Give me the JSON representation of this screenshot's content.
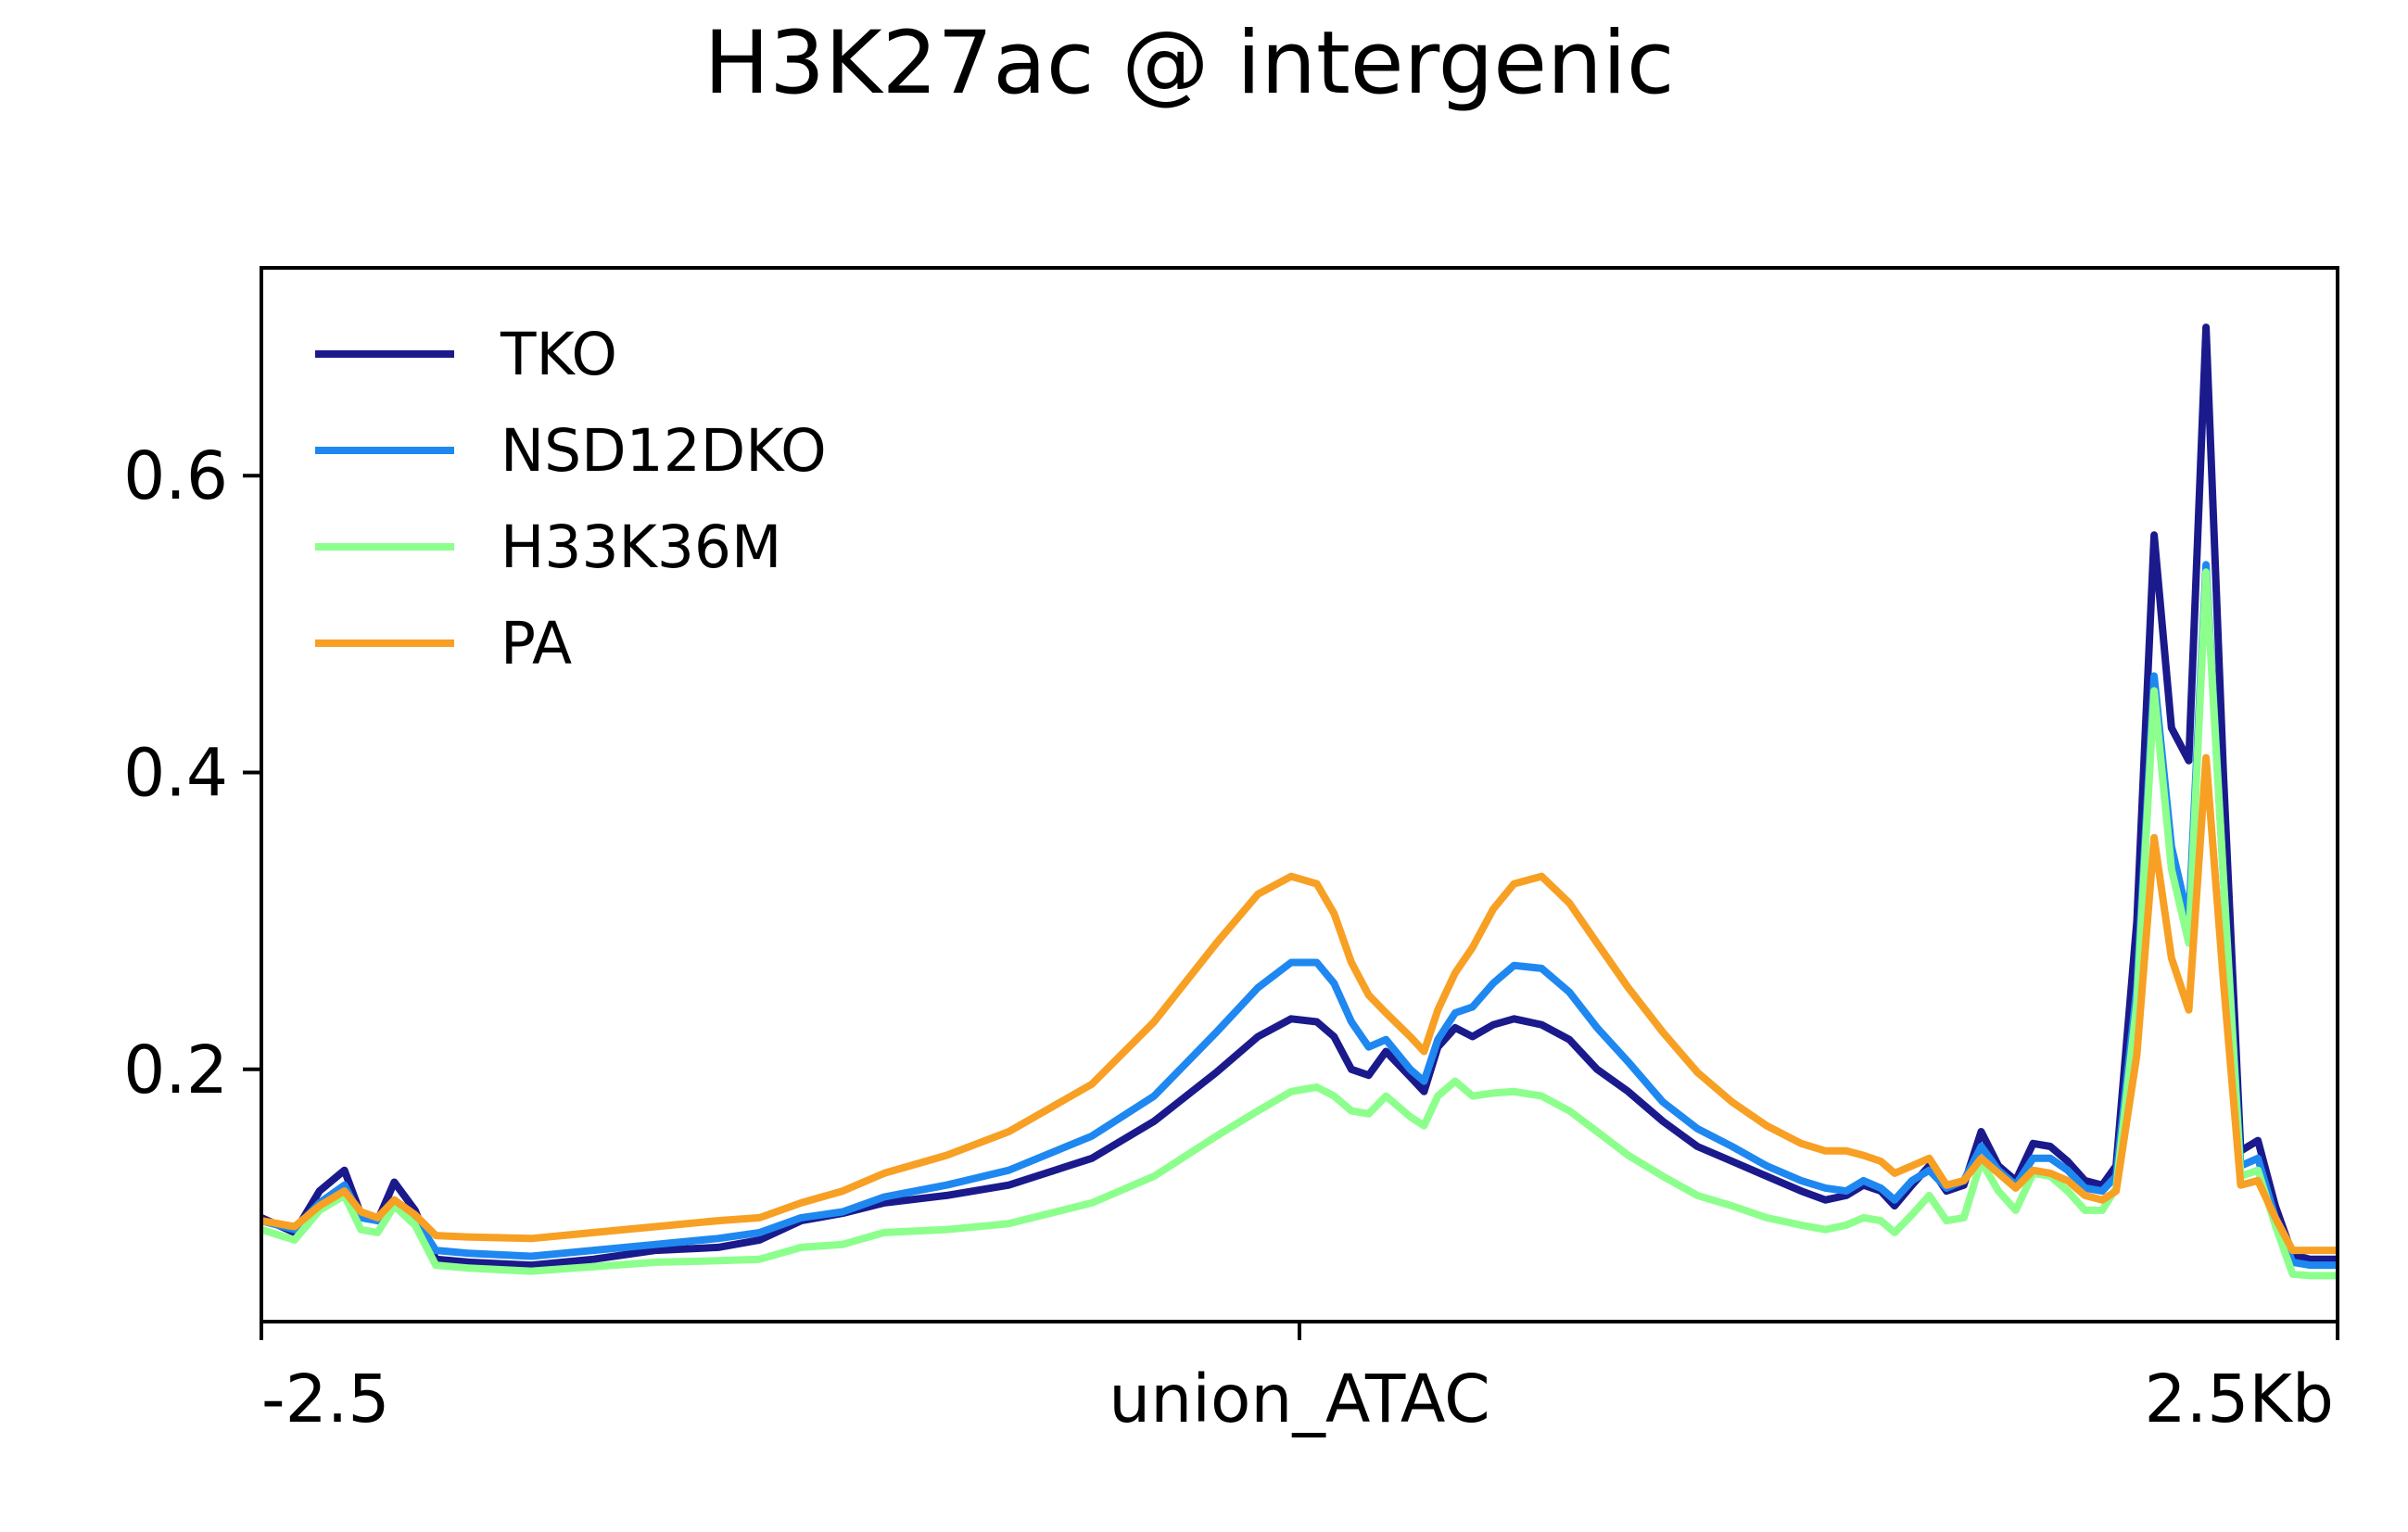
{
  "chart_data": {
    "type": "line",
    "title": "H3K27ac @ intergenic",
    "xlabel": "",
    "ylabel": "",
    "x_ticks": [
      {
        "x": -2.5,
        "label": "-2.5"
      },
      {
        "x": 0,
        "label": "union_ATAC"
      },
      {
        "x": 2.5,
        "label": "2.5Kb"
      }
    ],
    "y_ticks": [
      {
        "y": 0.2,
        "label": "0.2"
      },
      {
        "y": 0.4,
        "label": "0.4"
      },
      {
        "y": 0.6,
        "label": "0.6"
      }
    ],
    "xlim": [
      -2.5,
      2.5
    ],
    "ylim": [
      0.03,
      0.74
    ],
    "grid": false,
    "legend_position": "top-left",
    "series": [
      {
        "name": "TKO",
        "color": "#1a1a8c",
        "points": [
          [
            -2.5,
            0.1
          ],
          [
            -2.42,
            0.09
          ],
          [
            -2.36,
            0.118
          ],
          [
            -2.3,
            0.132
          ],
          [
            -2.26,
            0.102
          ],
          [
            -2.22,
            0.098
          ],
          [
            -2.18,
            0.124
          ],
          [
            -2.13,
            0.105
          ],
          [
            -2.08,
            0.072
          ],
          [
            -2.0,
            0.07
          ],
          [
            -1.85,
            0.068
          ],
          [
            -1.7,
            0.072
          ],
          [
            -1.55,
            0.078
          ],
          [
            -1.4,
            0.08
          ],
          [
            -1.3,
            0.085
          ],
          [
            -1.2,
            0.098
          ],
          [
            -1.1,
            0.103
          ],
          [
            -1.0,
            0.11
          ],
          [
            -0.85,
            0.115
          ],
          [
            -0.7,
            0.122
          ],
          [
            -0.5,
            0.14
          ],
          [
            -0.35,
            0.165
          ],
          [
            -0.2,
            0.198
          ],
          [
            -0.1,
            0.222
          ],
          [
            -0.02,
            0.234
          ],
          [
            0.05,
            0.232
          ],
          [
            0.1,
            0.222
          ],
          [
            0.15,
            0.2
          ],
          [
            0.2,
            0.196
          ],
          [
            0.25,
            0.212
          ],
          [
            0.32,
            0.195
          ],
          [
            0.36,
            0.185
          ],
          [
            0.4,
            0.215
          ],
          [
            0.45,
            0.228
          ],
          [
            0.5,
            0.222
          ],
          [
            0.56,
            0.23
          ],
          [
            0.62,
            0.234
          ],
          [
            0.7,
            0.23
          ],
          [
            0.78,
            0.22
          ],
          [
            0.86,
            0.2
          ],
          [
            0.95,
            0.185
          ],
          [
            1.05,
            0.165
          ],
          [
            1.15,
            0.148
          ],
          [
            1.25,
            0.138
          ],
          [
            1.35,
            0.128
          ],
          [
            1.45,
            0.118
          ],
          [
            1.52,
            0.112
          ],
          [
            1.58,
            0.115
          ],
          [
            1.63,
            0.122
          ],
          [
            1.68,
            0.118
          ],
          [
            1.72,
            0.108
          ],
          [
            1.77,
            0.122
          ],
          [
            1.82,
            0.135
          ],
          [
            1.87,
            0.118
          ],
          [
            1.92,
            0.122
          ],
          [
            1.97,
            0.158
          ],
          [
            2.02,
            0.135
          ],
          [
            2.07,
            0.125
          ],
          [
            2.12,
            0.15
          ],
          [
            2.17,
            0.148
          ],
          [
            2.22,
            0.138
          ],
          [
            2.27,
            0.125
          ],
          [
            2.32,
            0.122
          ],
          [
            2.36,
            0.135
          ],
          [
            2.42,
            0.3
          ],
          [
            2.47,
            0.56
          ],
          [
            2.52,
            0.43
          ],
          [
            2.57,
            0.408
          ],
          [
            2.62,
            0.7
          ],
          [
            2.67,
            0.4
          ],
          [
            2.72,
            0.145
          ],
          [
            2.77,
            0.152
          ],
          [
            2.82,
            0.108
          ],
          [
            2.87,
            0.075
          ],
          [
            2.92,
            0.072
          ],
          [
            2.97,
            0.072
          ],
          [
            3.0,
            0.072
          ]
        ]
      },
      {
        "name": "NSD12DKO",
        "color": "#1e88f0",
        "points": [
          [
            -2.5,
            0.098
          ],
          [
            -2.42,
            0.092
          ],
          [
            -2.36,
            0.11
          ],
          [
            -2.3,
            0.122
          ],
          [
            -2.26,
            0.1
          ],
          [
            -2.22,
            0.098
          ],
          [
            -2.18,
            0.112
          ],
          [
            -2.13,
            0.1
          ],
          [
            -2.08,
            0.078
          ],
          [
            -2.0,
            0.076
          ],
          [
            -1.85,
            0.074
          ],
          [
            -1.7,
            0.078
          ],
          [
            -1.55,
            0.082
          ],
          [
            -1.4,
            0.086
          ],
          [
            -1.3,
            0.09
          ],
          [
            -1.2,
            0.1
          ],
          [
            -1.1,
            0.104
          ],
          [
            -1.0,
            0.114
          ],
          [
            -0.85,
            0.122
          ],
          [
            -0.7,
            0.132
          ],
          [
            -0.5,
            0.155
          ],
          [
            -0.35,
            0.182
          ],
          [
            -0.2,
            0.225
          ],
          [
            -0.1,
            0.255
          ],
          [
            -0.02,
            0.272
          ],
          [
            0.05,
            0.272
          ],
          [
            0.1,
            0.258
          ],
          [
            0.15,
            0.232
          ],
          [
            0.2,
            0.215
          ],
          [
            0.25,
            0.22
          ],
          [
            0.32,
            0.2
          ],
          [
            0.36,
            0.192
          ],
          [
            0.4,
            0.22
          ],
          [
            0.45,
            0.238
          ],
          [
            0.5,
            0.242
          ],
          [
            0.56,
            0.258
          ],
          [
            0.62,
            0.27
          ],
          [
            0.7,
            0.268
          ],
          [
            0.78,
            0.252
          ],
          [
            0.86,
            0.228
          ],
          [
            0.95,
            0.205
          ],
          [
            1.05,
            0.178
          ],
          [
            1.15,
            0.16
          ],
          [
            1.25,
            0.148
          ],
          [
            1.35,
            0.135
          ],
          [
            1.45,
            0.125
          ],
          [
            1.52,
            0.12
          ],
          [
            1.58,
            0.118
          ],
          [
            1.63,
            0.125
          ],
          [
            1.68,
            0.12
          ],
          [
            1.72,
            0.112
          ],
          [
            1.77,
            0.125
          ],
          [
            1.82,
            0.132
          ],
          [
            1.87,
            0.12
          ],
          [
            1.92,
            0.125
          ],
          [
            1.97,
            0.148
          ],
          [
            2.02,
            0.132
          ],
          [
            2.07,
            0.122
          ],
          [
            2.12,
            0.14
          ],
          [
            2.17,
            0.14
          ],
          [
            2.22,
            0.132
          ],
          [
            2.27,
            0.12
          ],
          [
            2.32,
            0.118
          ],
          [
            2.36,
            0.128
          ],
          [
            2.42,
            0.255
          ],
          [
            2.47,
            0.465
          ],
          [
            2.52,
            0.35
          ],
          [
            2.57,
            0.3
          ],
          [
            2.62,
            0.54
          ],
          [
            2.67,
            0.33
          ],
          [
            2.72,
            0.135
          ],
          [
            2.77,
            0.14
          ],
          [
            2.82,
            0.1
          ],
          [
            2.87,
            0.07
          ],
          [
            2.92,
            0.068
          ],
          [
            2.97,
            0.068
          ],
          [
            3.0,
            0.068
          ]
        ]
      },
      {
        "name": "H33K36M",
        "color": "#8cff8c",
        "points": [
          [
            -2.5,
            0.092
          ],
          [
            -2.42,
            0.085
          ],
          [
            -2.36,
            0.105
          ],
          [
            -2.3,
            0.115
          ],
          [
            -2.26,
            0.092
          ],
          [
            -2.22,
            0.09
          ],
          [
            -2.18,
            0.108
          ],
          [
            -2.13,
            0.095
          ],
          [
            -2.08,
            0.068
          ],
          [
            -2.0,
            0.066
          ],
          [
            -1.85,
            0.064
          ],
          [
            -1.7,
            0.067
          ],
          [
            -1.55,
            0.07
          ],
          [
            -1.4,
            0.071
          ],
          [
            -1.3,
            0.072
          ],
          [
            -1.2,
            0.08
          ],
          [
            -1.1,
            0.082
          ],
          [
            -1.0,
            0.09
          ],
          [
            -0.85,
            0.092
          ],
          [
            -0.7,
            0.096
          ],
          [
            -0.5,
            0.11
          ],
          [
            -0.35,
            0.128
          ],
          [
            -0.2,
            0.155
          ],
          [
            -0.1,
            0.172
          ],
          [
            -0.02,
            0.185
          ],
          [
            0.05,
            0.188
          ],
          [
            0.1,
            0.182
          ],
          [
            0.15,
            0.172
          ],
          [
            0.2,
            0.17
          ],
          [
            0.25,
            0.182
          ],
          [
            0.32,
            0.168
          ],
          [
            0.36,
            0.162
          ],
          [
            0.4,
            0.182
          ],
          [
            0.45,
            0.192
          ],
          [
            0.5,
            0.182
          ],
          [
            0.56,
            0.184
          ],
          [
            0.62,
            0.185
          ],
          [
            0.7,
            0.182
          ],
          [
            0.78,
            0.172
          ],
          [
            0.86,
            0.158
          ],
          [
            0.95,
            0.142
          ],
          [
            1.05,
            0.128
          ],
          [
            1.15,
            0.115
          ],
          [
            1.25,
            0.108
          ],
          [
            1.35,
            0.1
          ],
          [
            1.45,
            0.095
          ],
          [
            1.52,
            0.092
          ],
          [
            1.58,
            0.095
          ],
          [
            1.63,
            0.1
          ],
          [
            1.68,
            0.098
          ],
          [
            1.72,
            0.09
          ],
          [
            1.77,
            0.102
          ],
          [
            1.82,
            0.115
          ],
          [
            1.87,
            0.098
          ],
          [
            1.92,
            0.1
          ],
          [
            1.97,
            0.138
          ],
          [
            2.02,
            0.118
          ],
          [
            2.07,
            0.105
          ],
          [
            2.12,
            0.13
          ],
          [
            2.17,
            0.128
          ],
          [
            2.22,
            0.118
          ],
          [
            2.27,
            0.105
          ],
          [
            2.32,
            0.105
          ],
          [
            2.36,
            0.12
          ],
          [
            2.42,
            0.245
          ],
          [
            2.47,
            0.455
          ],
          [
            2.52,
            0.335
          ],
          [
            2.57,
            0.285
          ],
          [
            2.62,
            0.535
          ],
          [
            2.67,
            0.33
          ],
          [
            2.72,
            0.128
          ],
          [
            2.77,
            0.132
          ],
          [
            2.82,
            0.095
          ],
          [
            2.87,
            0.062
          ],
          [
            2.92,
            0.061
          ],
          [
            2.97,
            0.061
          ],
          [
            3.0,
            0.061
          ]
        ]
      },
      {
        "name": "PA",
        "color": "#f7a024",
        "points": [
          [
            -2.5,
            0.098
          ],
          [
            -2.42,
            0.094
          ],
          [
            -2.36,
            0.108
          ],
          [
            -2.3,
            0.118
          ],
          [
            -2.26,
            0.104
          ],
          [
            -2.22,
            0.1
          ],
          [
            -2.18,
            0.112
          ],
          [
            -2.13,
            0.102
          ],
          [
            -2.08,
            0.088
          ],
          [
            -2.0,
            0.087
          ],
          [
            -1.85,
            0.086
          ],
          [
            -1.7,
            0.09
          ],
          [
            -1.55,
            0.094
          ],
          [
            -1.4,
            0.098
          ],
          [
            -1.3,
            0.1
          ],
          [
            -1.2,
            0.11
          ],
          [
            -1.1,
            0.118
          ],
          [
            -1.0,
            0.13
          ],
          [
            -0.85,
            0.142
          ],
          [
            -0.7,
            0.158
          ],
          [
            -0.5,
            0.19
          ],
          [
            -0.35,
            0.232
          ],
          [
            -0.2,
            0.285
          ],
          [
            -0.1,
            0.318
          ],
          [
            -0.02,
            0.33
          ],
          [
            0.05,
            0.325
          ],
          [
            0.1,
            0.305
          ],
          [
            0.15,
            0.272
          ],
          [
            0.2,
            0.25
          ],
          [
            0.25,
            0.238
          ],
          [
            0.32,
            0.222
          ],
          [
            0.36,
            0.212
          ],
          [
            0.4,
            0.24
          ],
          [
            0.45,
            0.265
          ],
          [
            0.5,
            0.282
          ],
          [
            0.56,
            0.308
          ],
          [
            0.62,
            0.325
          ],
          [
            0.7,
            0.33
          ],
          [
            0.78,
            0.312
          ],
          [
            0.86,
            0.285
          ],
          [
            0.95,
            0.255
          ],
          [
            1.05,
            0.225
          ],
          [
            1.15,
            0.198
          ],
          [
            1.25,
            0.178
          ],
          [
            1.35,
            0.162
          ],
          [
            1.45,
            0.15
          ],
          [
            1.52,
            0.145
          ],
          [
            1.58,
            0.145
          ],
          [
            1.63,
            0.142
          ],
          [
            1.68,
            0.138
          ],
          [
            1.72,
            0.13
          ],
          [
            1.77,
            0.135
          ],
          [
            1.82,
            0.14
          ],
          [
            1.87,
            0.122
          ],
          [
            1.92,
            0.125
          ],
          [
            1.97,
            0.14
          ],
          [
            2.02,
            0.13
          ],
          [
            2.07,
            0.12
          ],
          [
            2.12,
            0.132
          ],
          [
            2.17,
            0.13
          ],
          [
            2.22,
            0.125
          ],
          [
            2.27,
            0.115
          ],
          [
            2.32,
            0.112
          ],
          [
            2.36,
            0.118
          ],
          [
            2.42,
            0.21
          ],
          [
            2.47,
            0.356
          ],
          [
            2.52,
            0.275
          ],
          [
            2.57,
            0.24
          ],
          [
            2.62,
            0.41
          ],
          [
            2.67,
            0.26
          ],
          [
            2.72,
            0.122
          ],
          [
            2.77,
            0.125
          ],
          [
            2.82,
            0.1
          ],
          [
            2.87,
            0.078
          ],
          [
            2.92,
            0.078
          ],
          [
            2.97,
            0.078
          ],
          [
            3.0,
            0.078
          ]
        ]
      }
    ]
  }
}
